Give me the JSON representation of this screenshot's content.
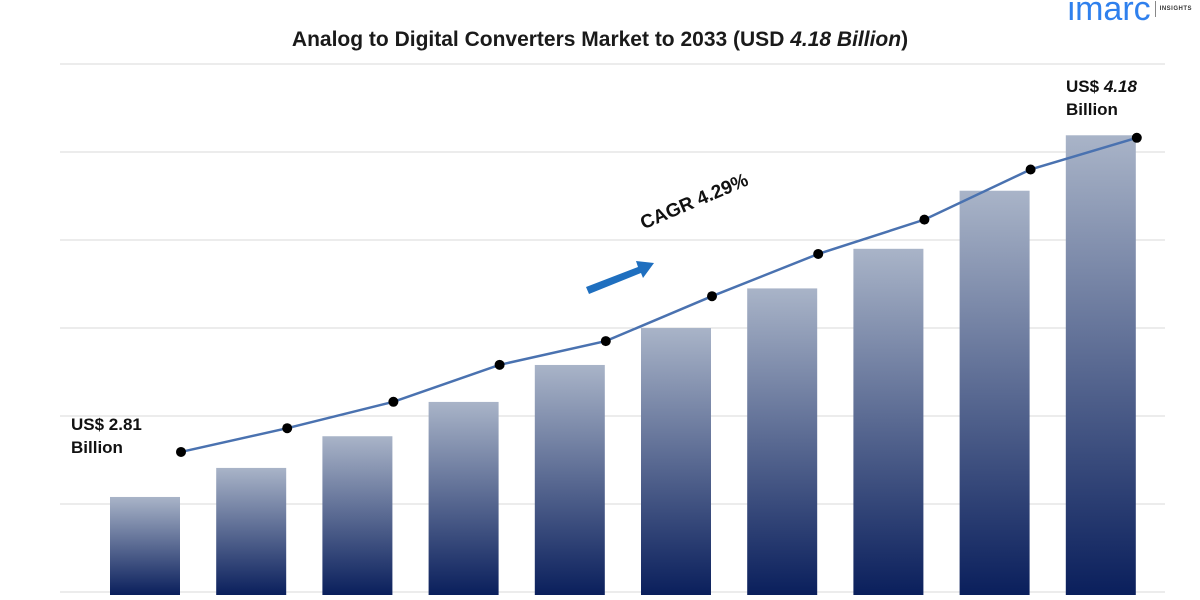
{
  "header": {
    "title_main": "Analog to Digital Converters Market to 2033 (USD ",
    "title_value": "4.18 Billion",
    "title_close": ")"
  },
  "logo": {
    "word": "imarc",
    "sub": "INSIGHTS",
    "color": "#2f80ed"
  },
  "annotations": {
    "start_currency": "US$ 2.81",
    "start_unit": "Billion",
    "end_currency": "US$",
    "end_value": "4.18",
    "end_unit": "Billion",
    "cagr": "CAGR 4.29%"
  },
  "chart_data": {
    "type": "bar",
    "categories": [
      "",
      "",
      "",
      "",
      "",
      "",
      "",
      "",
      "",
      ""
    ],
    "series": [
      {
        "values": [
          2.81,
          2.92,
          3.04,
          3.17,
          3.31,
          3.45,
          3.6,
          3.75,
          3.97,
          4.18
        ]
      }
    ],
    "trend_line": [
      2.81,
      2.9,
      3.0,
      3.14,
      3.23,
      3.4,
      3.56,
      3.69,
      3.88,
      4.0
    ],
    "ylim": [
      2.45,
      4.45
    ],
    "grid": true,
    "colors": {
      "bar_top": "#a9b4c8",
      "bar_bottom": "#0a1f5c",
      "line": "#4a72b0",
      "marker": "#000000",
      "arrow": "#1f6fbf"
    }
  }
}
